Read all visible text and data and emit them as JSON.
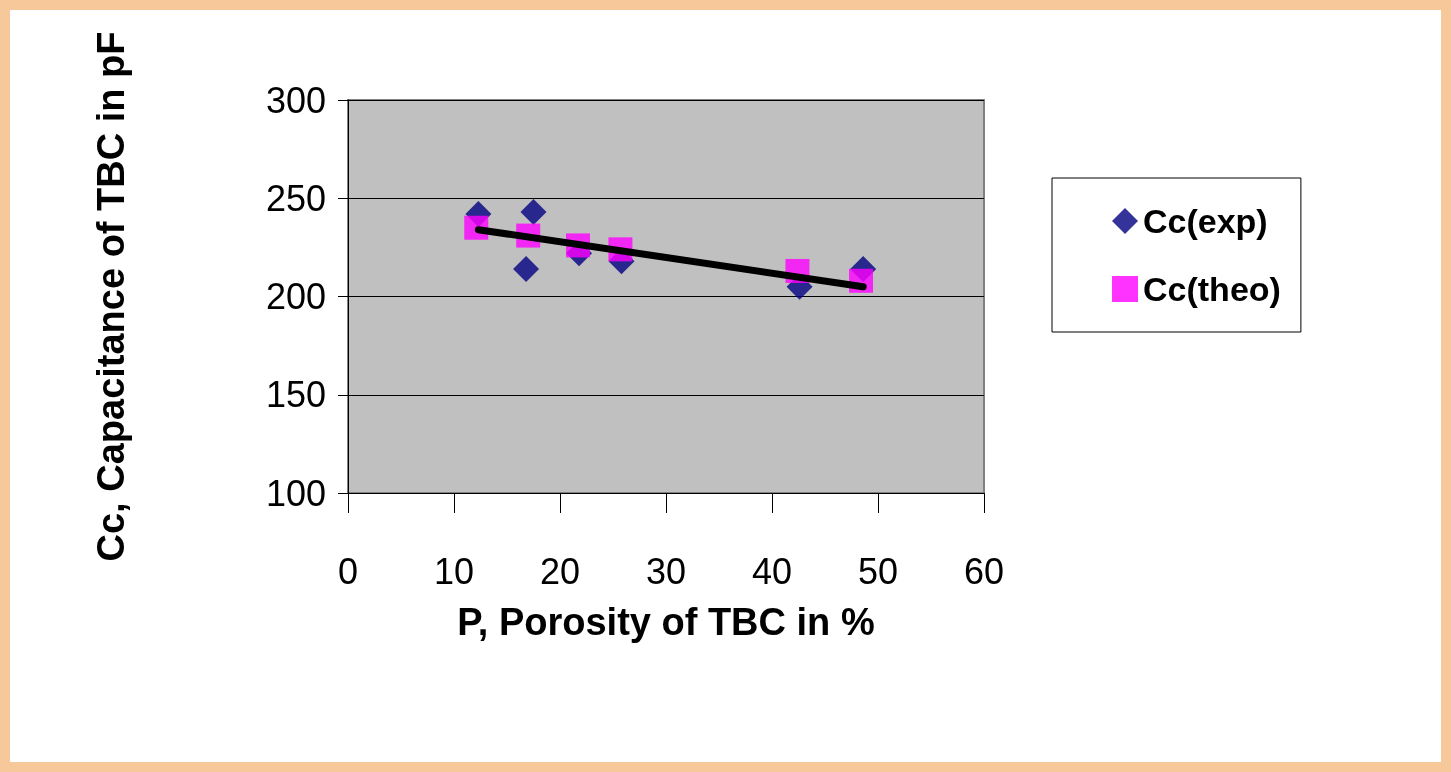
{
  "chart_data": {
    "type": "scatter",
    "xlabel": "P, Porosity of TBC in %",
    "ylabel": "Cc, Capacitance of TBC in pF",
    "xlim": [
      0,
      60
    ],
    "xticks": [
      0,
      10,
      20,
      30,
      40,
      50,
      60
    ],
    "ylim": [
      100,
      300
    ],
    "yticks": [
      100,
      150,
      200,
      250,
      300
    ],
    "grid": "y",
    "legend": "right",
    "series": [
      {
        "name": "Cc(exp)",
        "color": "#000080",
        "marker": "diamond",
        "x": [
          12.3,
          17.5,
          16.8,
          21.8,
          25.8,
          42.6,
          48.6
        ],
        "values": [
          242,
          243,
          214,
          222,
          218,
          205,
          214
        ]
      },
      {
        "name": "Cc(theo)",
        "color": "#ff00ff",
        "marker": "square",
        "x": [
          12.1,
          17.0,
          21.7,
          25.7,
          42.4,
          48.4
        ],
        "values": [
          235,
          231,
          226,
          224,
          213,
          208
        ]
      },
      {
        "type": "line",
        "color": "#000000",
        "marker": "none",
        "x": [
          12.3,
          48.6
        ],
        "values": [
          234,
          205
        ]
      }
    ]
  }
}
